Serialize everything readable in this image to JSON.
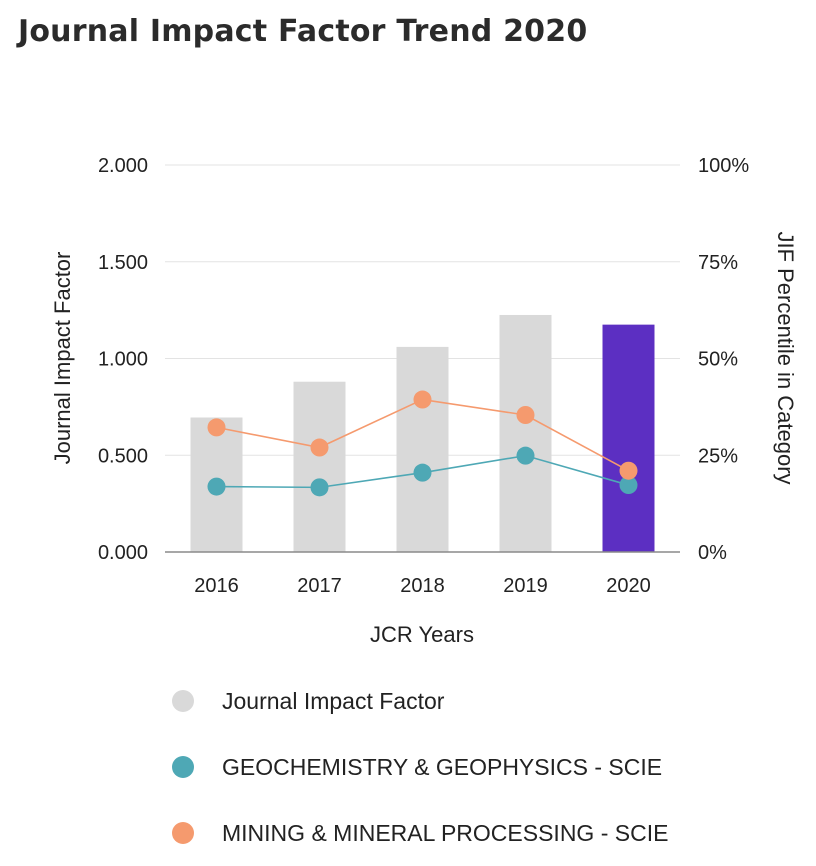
{
  "title": "Journal Impact Factor Trend 2020",
  "chart_data": {
    "type": "bar",
    "categories": [
      "2016",
      "2017",
      "2018",
      "2019",
      "2020"
    ],
    "xlabel": "JCR Years",
    "ylabel": "Journal Impact Factor",
    "y2label": "JIF Percentile in Category",
    "ylim": [
      0,
      2
    ],
    "y2lim": [
      0,
      100
    ],
    "yticks": [
      "0.000",
      "0.500",
      "1.000",
      "1.500",
      "2.000"
    ],
    "y2ticks": [
      "0%",
      "25%",
      "50%",
      "75%",
      "100%"
    ],
    "series": [
      {
        "name": "Journal Impact Factor",
        "kind": "bar",
        "axis": "left",
        "values": [
          0.695,
          0.88,
          1.06,
          1.225,
          1.175
        ],
        "color": "#d9d9d9",
        "highlight_color": "#5c2fc2",
        "highlight_index": 4
      },
      {
        "name": "GEOCHEMISTRY & GEOPHYSICS - SCIE",
        "kind": "line",
        "axis": "right",
        "values": [
          16.9,
          16.7,
          20.5,
          24.9,
          17.3
        ],
        "color": "#4ea8b5"
      },
      {
        "name": "MINING & MINERAL PROCESSING - SCIE",
        "kind": "line",
        "axis": "right",
        "values": [
          32.2,
          27.0,
          39.4,
          35.4,
          21.0
        ],
        "color": "#f59a6e"
      }
    ]
  }
}
